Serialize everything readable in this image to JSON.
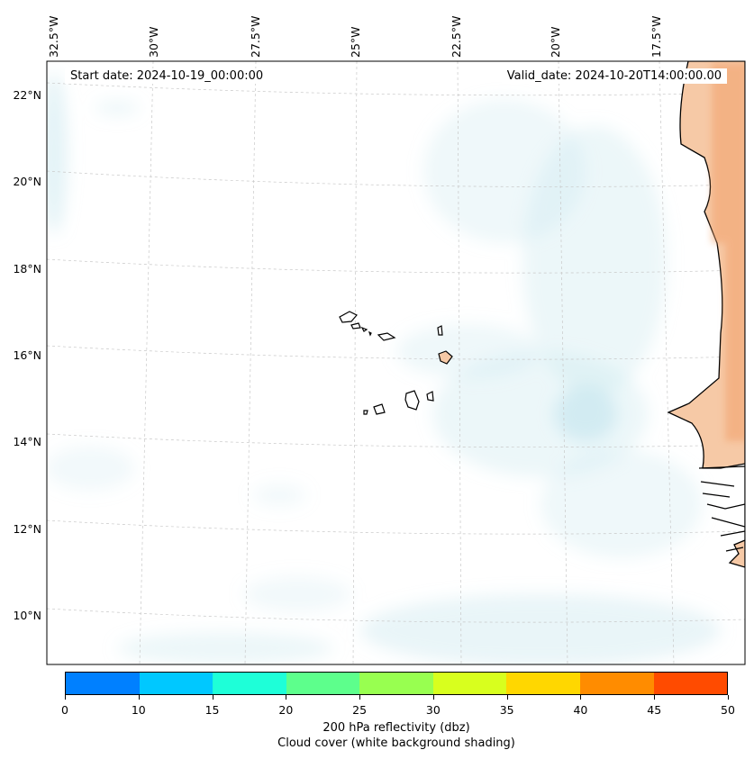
{
  "map": {
    "start_date": "Start date: 2024-10-19_00:00:00",
    "valid_date": "Valid_date: 2024-10-20T14:00:00.00",
    "lon_labels": [
      "32.5°W",
      "30°W",
      "27.5°W",
      "25°W",
      "22.5°W",
      "20°W",
      "17.5°W"
    ],
    "lat_labels": [
      "22°N",
      "20°N",
      "18°N",
      "16°N",
      "14°N",
      "12°N",
      "10°N"
    ],
    "gridlines": "dashed",
    "land_color": "#f6c9a6",
    "cloud_color": "#bfe3ec"
  },
  "colorbar": {
    "ticks": [
      "0",
      "10",
      "15",
      "20",
      "25",
      "30",
      "35",
      "40",
      "45",
      "50"
    ],
    "colors": [
      "#0080ff",
      "#00c8ff",
      "#1effd8",
      "#5dff8c",
      "#98ff50",
      "#d8ff1e",
      "#ffd700",
      "#ff8c00",
      "#ff4b00"
    ],
    "label_line1": "200 hPa reflectivity (dbz)",
    "label_line2": "Cloud cover (white background shading)"
  }
}
